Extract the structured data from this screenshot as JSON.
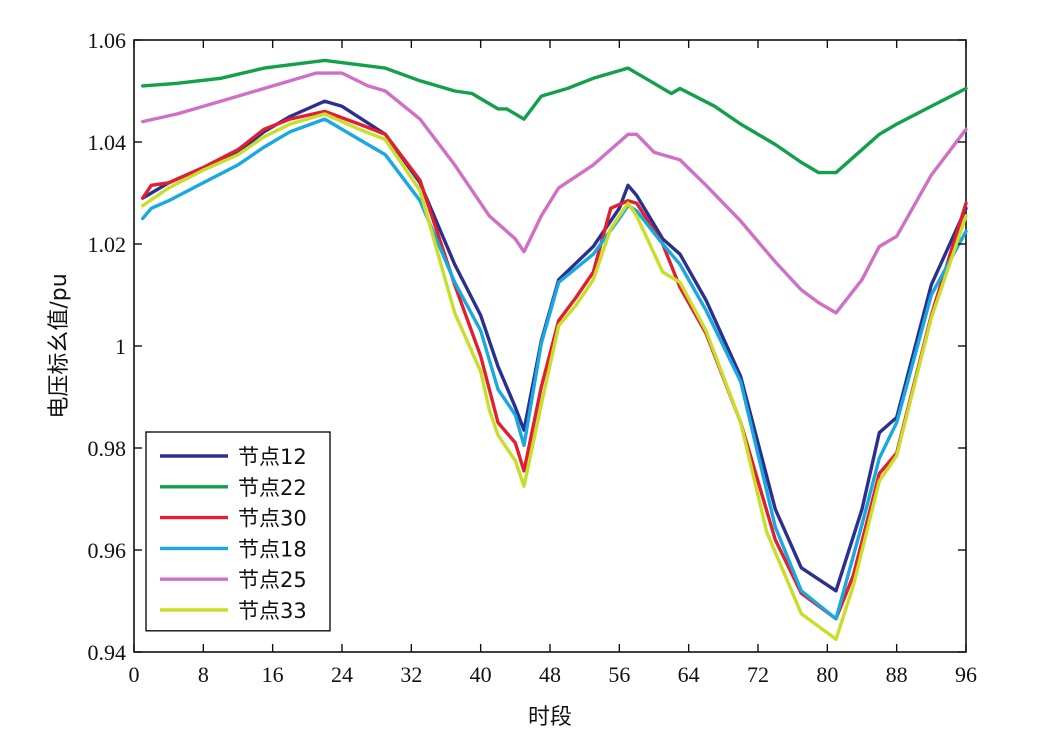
{
  "chart_data": {
    "type": "line",
    "xlabel": "时段",
    "ylabel": "电压标幺值/pu",
    "xlim": [
      0,
      96
    ],
    "ylim": [
      0.94,
      1.06
    ],
    "xticks": [
      0,
      8,
      16,
      24,
      32,
      40,
      48,
      56,
      64,
      72,
      80,
      88,
      96
    ],
    "yticks": [
      0.94,
      0.96,
      0.98,
      1,
      1.02,
      1.04,
      1.06
    ],
    "ytick_labels": [
      "0.94",
      "0.96",
      "0.98",
      "1",
      "1.02",
      "1.04",
      "1.06"
    ],
    "grid": false,
    "legend_position": "bottom-left",
    "series": [
      {
        "name": "节点12",
        "color": "#2b2f8f",
        "points": [
          [
            1,
            1.029
          ],
          [
            4,
            1.032
          ],
          [
            8,
            1.035
          ],
          [
            12,
            1.038
          ],
          [
            15,
            1.042
          ],
          [
            18,
            1.045
          ],
          [
            22,
            1.048
          ],
          [
            24,
            1.047
          ],
          [
            29,
            1.0415
          ],
          [
            33,
            1.032
          ],
          [
            37,
            1.016
          ],
          [
            40,
            1.006
          ],
          [
            42,
            0.996
          ],
          [
            44,
            0.988
          ],
          [
            45,
            0.9835
          ],
          [
            47,
            1.001
          ],
          [
            49,
            1.013
          ],
          [
            53,
            1.0195
          ],
          [
            56,
            1.027
          ],
          [
            57,
            1.0315
          ],
          [
            58,
            1.0295
          ],
          [
            61,
            1.021
          ],
          [
            63,
            1.018
          ],
          [
            66,
            1.009
          ],
          [
            70,
            0.994
          ],
          [
            74,
            0.968
          ],
          [
            77,
            0.9565
          ],
          [
            81,
            0.952
          ],
          [
            84,
            0.968
          ],
          [
            86,
            0.983
          ],
          [
            88,
            0.986
          ],
          [
            92,
            1.012
          ],
          [
            96,
            1.027
          ]
        ]
      },
      {
        "name": "节点22",
        "color": "#12a04a",
        "points": [
          [
            1,
            1.051
          ],
          [
            5,
            1.0515
          ],
          [
            10,
            1.0525
          ],
          [
            15,
            1.0545
          ],
          [
            22,
            1.056
          ],
          [
            29,
            1.0545
          ],
          [
            33,
            1.052
          ],
          [
            37,
            1.05
          ],
          [
            39,
            1.0495
          ],
          [
            42,
            1.0465
          ],
          [
            43,
            1.0465
          ],
          [
            45,
            1.0445
          ],
          [
            47,
            1.049
          ],
          [
            50,
            1.0505
          ],
          [
            53,
            1.0525
          ],
          [
            57,
            1.0545
          ],
          [
            60,
            1.0515
          ],
          [
            62,
            1.0495
          ],
          [
            63,
            1.0505
          ],
          [
            67,
            1.047
          ],
          [
            70,
            1.0435
          ],
          [
            74,
            1.0395
          ],
          [
            77,
            1.036
          ],
          [
            79,
            1.034
          ],
          [
            81,
            1.034
          ],
          [
            83,
            1.037
          ],
          [
            86,
            1.0415
          ],
          [
            88,
            1.0435
          ],
          [
            92,
            1.047
          ],
          [
            96,
            1.0505
          ]
        ]
      },
      {
        "name": "节点30",
        "color": "#e02030",
        "points": [
          [
            1,
            1.029
          ],
          [
            2,
            1.0315
          ],
          [
            4,
            1.032
          ],
          [
            8,
            1.035
          ],
          [
            12,
            1.0385
          ],
          [
            15,
            1.0425
          ],
          [
            18,
            1.0445
          ],
          [
            22,
            1.046
          ],
          [
            26,
            1.0435
          ],
          [
            29,
            1.0415
          ],
          [
            33,
            1.0325
          ],
          [
            37,
            1.012
          ],
          [
            40,
            0.998
          ],
          [
            42,
            0.985
          ],
          [
            44,
            0.981
          ],
          [
            45,
            0.9755
          ],
          [
            47,
            0.992
          ],
          [
            49,
            1.005
          ],
          [
            51,
            1.0095
          ],
          [
            53,
            1.0145
          ],
          [
            55,
            1.027
          ],
          [
            57,
            1.0285
          ],
          [
            58,
            1.028
          ],
          [
            61,
            1.02
          ],
          [
            63,
            1.0115
          ],
          [
            66,
            1.0025
          ],
          [
            70,
            0.985
          ],
          [
            74,
            0.962
          ],
          [
            77,
            0.9515
          ],
          [
            81,
            0.9465
          ],
          [
            83,
            0.955
          ],
          [
            86,
            0.975
          ],
          [
            88,
            0.979
          ],
          [
            92,
            1.006
          ],
          [
            96,
            1.028
          ]
        ]
      },
      {
        "name": "节点18",
        "color": "#1aa8e0",
        "points": [
          [
            1,
            1.025
          ],
          [
            2,
            1.027
          ],
          [
            4,
            1.0285
          ],
          [
            8,
            1.032
          ],
          [
            12,
            1.0355
          ],
          [
            15,
            1.039
          ],
          [
            18,
            1.042
          ],
          [
            22,
            1.0445
          ],
          [
            26,
            1.0405
          ],
          [
            29,
            1.0375
          ],
          [
            33,
            1.0285
          ],
          [
            37,
            1.0125
          ],
          [
            40,
            1.003
          ],
          [
            42,
            0.9915
          ],
          [
            44,
            0.9865
          ],
          [
            45,
            0.9805
          ],
          [
            47,
            1.0005
          ],
          [
            49,
            1.0125
          ],
          [
            53,
            1.018
          ],
          [
            56,
            1.025
          ],
          [
            57,
            1.0275
          ],
          [
            58,
            1.0265
          ],
          [
            61,
            1.02
          ],
          [
            63,
            1.016
          ],
          [
            66,
            1.007
          ],
          [
            70,
            0.993
          ],
          [
            74,
            0.9645
          ],
          [
            77,
            0.952
          ],
          [
            81,
            0.9465
          ],
          [
            84,
            0.965
          ],
          [
            86,
            0.978
          ],
          [
            88,
            0.985
          ],
          [
            92,
            1.01
          ],
          [
            96,
            1.0225
          ]
        ]
      },
      {
        "name": "节点25",
        "color": "#d06fc6",
        "points": [
          [
            1,
            1.044
          ],
          [
            5,
            1.0455
          ],
          [
            10,
            1.048
          ],
          [
            15,
            1.0505
          ],
          [
            21,
            1.0535
          ],
          [
            24,
            1.0535
          ],
          [
            27,
            1.051
          ],
          [
            29,
            1.05
          ],
          [
            33,
            1.0445
          ],
          [
            37,
            1.0355
          ],
          [
            41,
            1.0255
          ],
          [
            44,
            1.021
          ],
          [
            45,
            1.0185
          ],
          [
            47,
            1.0255
          ],
          [
            49,
            1.031
          ],
          [
            53,
            1.0355
          ],
          [
            56,
            1.04
          ],
          [
            57,
            1.0415
          ],
          [
            58,
            1.0415
          ],
          [
            60,
            1.038
          ],
          [
            63,
            1.0365
          ],
          [
            66,
            1.0315
          ],
          [
            70,
            1.0245
          ],
          [
            74,
            1.0165
          ],
          [
            77,
            1.011
          ],
          [
            79,
            1.0085
          ],
          [
            81,
            1.0065
          ],
          [
            84,
            1.013
          ],
          [
            86,
            1.0195
          ],
          [
            88,
            1.0215
          ],
          [
            92,
            1.0335
          ],
          [
            96,
            1.0425
          ]
        ]
      },
      {
        "name": "节点33",
        "color": "#c8de28",
        "points": [
          [
            1,
            1.0275
          ],
          [
            4,
            1.031
          ],
          [
            8,
            1.0345
          ],
          [
            12,
            1.0375
          ],
          [
            15,
            1.041
          ],
          [
            18,
            1.0435
          ],
          [
            22,
            1.0455
          ],
          [
            26,
            1.0425
          ],
          [
            29,
            1.0405
          ],
          [
            33,
            1.0305
          ],
          [
            37,
            1.0065
          ],
          [
            40,
            0.995
          ],
          [
            41,
            0.9875
          ],
          [
            42,
            0.9825
          ],
          [
            44,
            0.9775
          ],
          [
            45,
            0.9725
          ],
          [
            47,
            0.9885
          ],
          [
            49,
            1.004
          ],
          [
            51,
            1.008
          ],
          [
            53,
            1.013
          ],
          [
            55,
            1.023
          ],
          [
            57,
            1.028
          ],
          [
            58,
            1.0255
          ],
          [
            61,
            1.0145
          ],
          [
            63,
            1.0125
          ],
          [
            66,
            1.003
          ],
          [
            70,
            0.985
          ],
          [
            73,
            0.9635
          ],
          [
            77,
            0.9475
          ],
          [
            81,
            0.9425
          ],
          [
            83,
            0.953
          ],
          [
            86,
            0.9735
          ],
          [
            88,
            0.9785
          ],
          [
            92,
            1.0055
          ],
          [
            96,
            1.0255
          ]
        ]
      }
    ]
  }
}
